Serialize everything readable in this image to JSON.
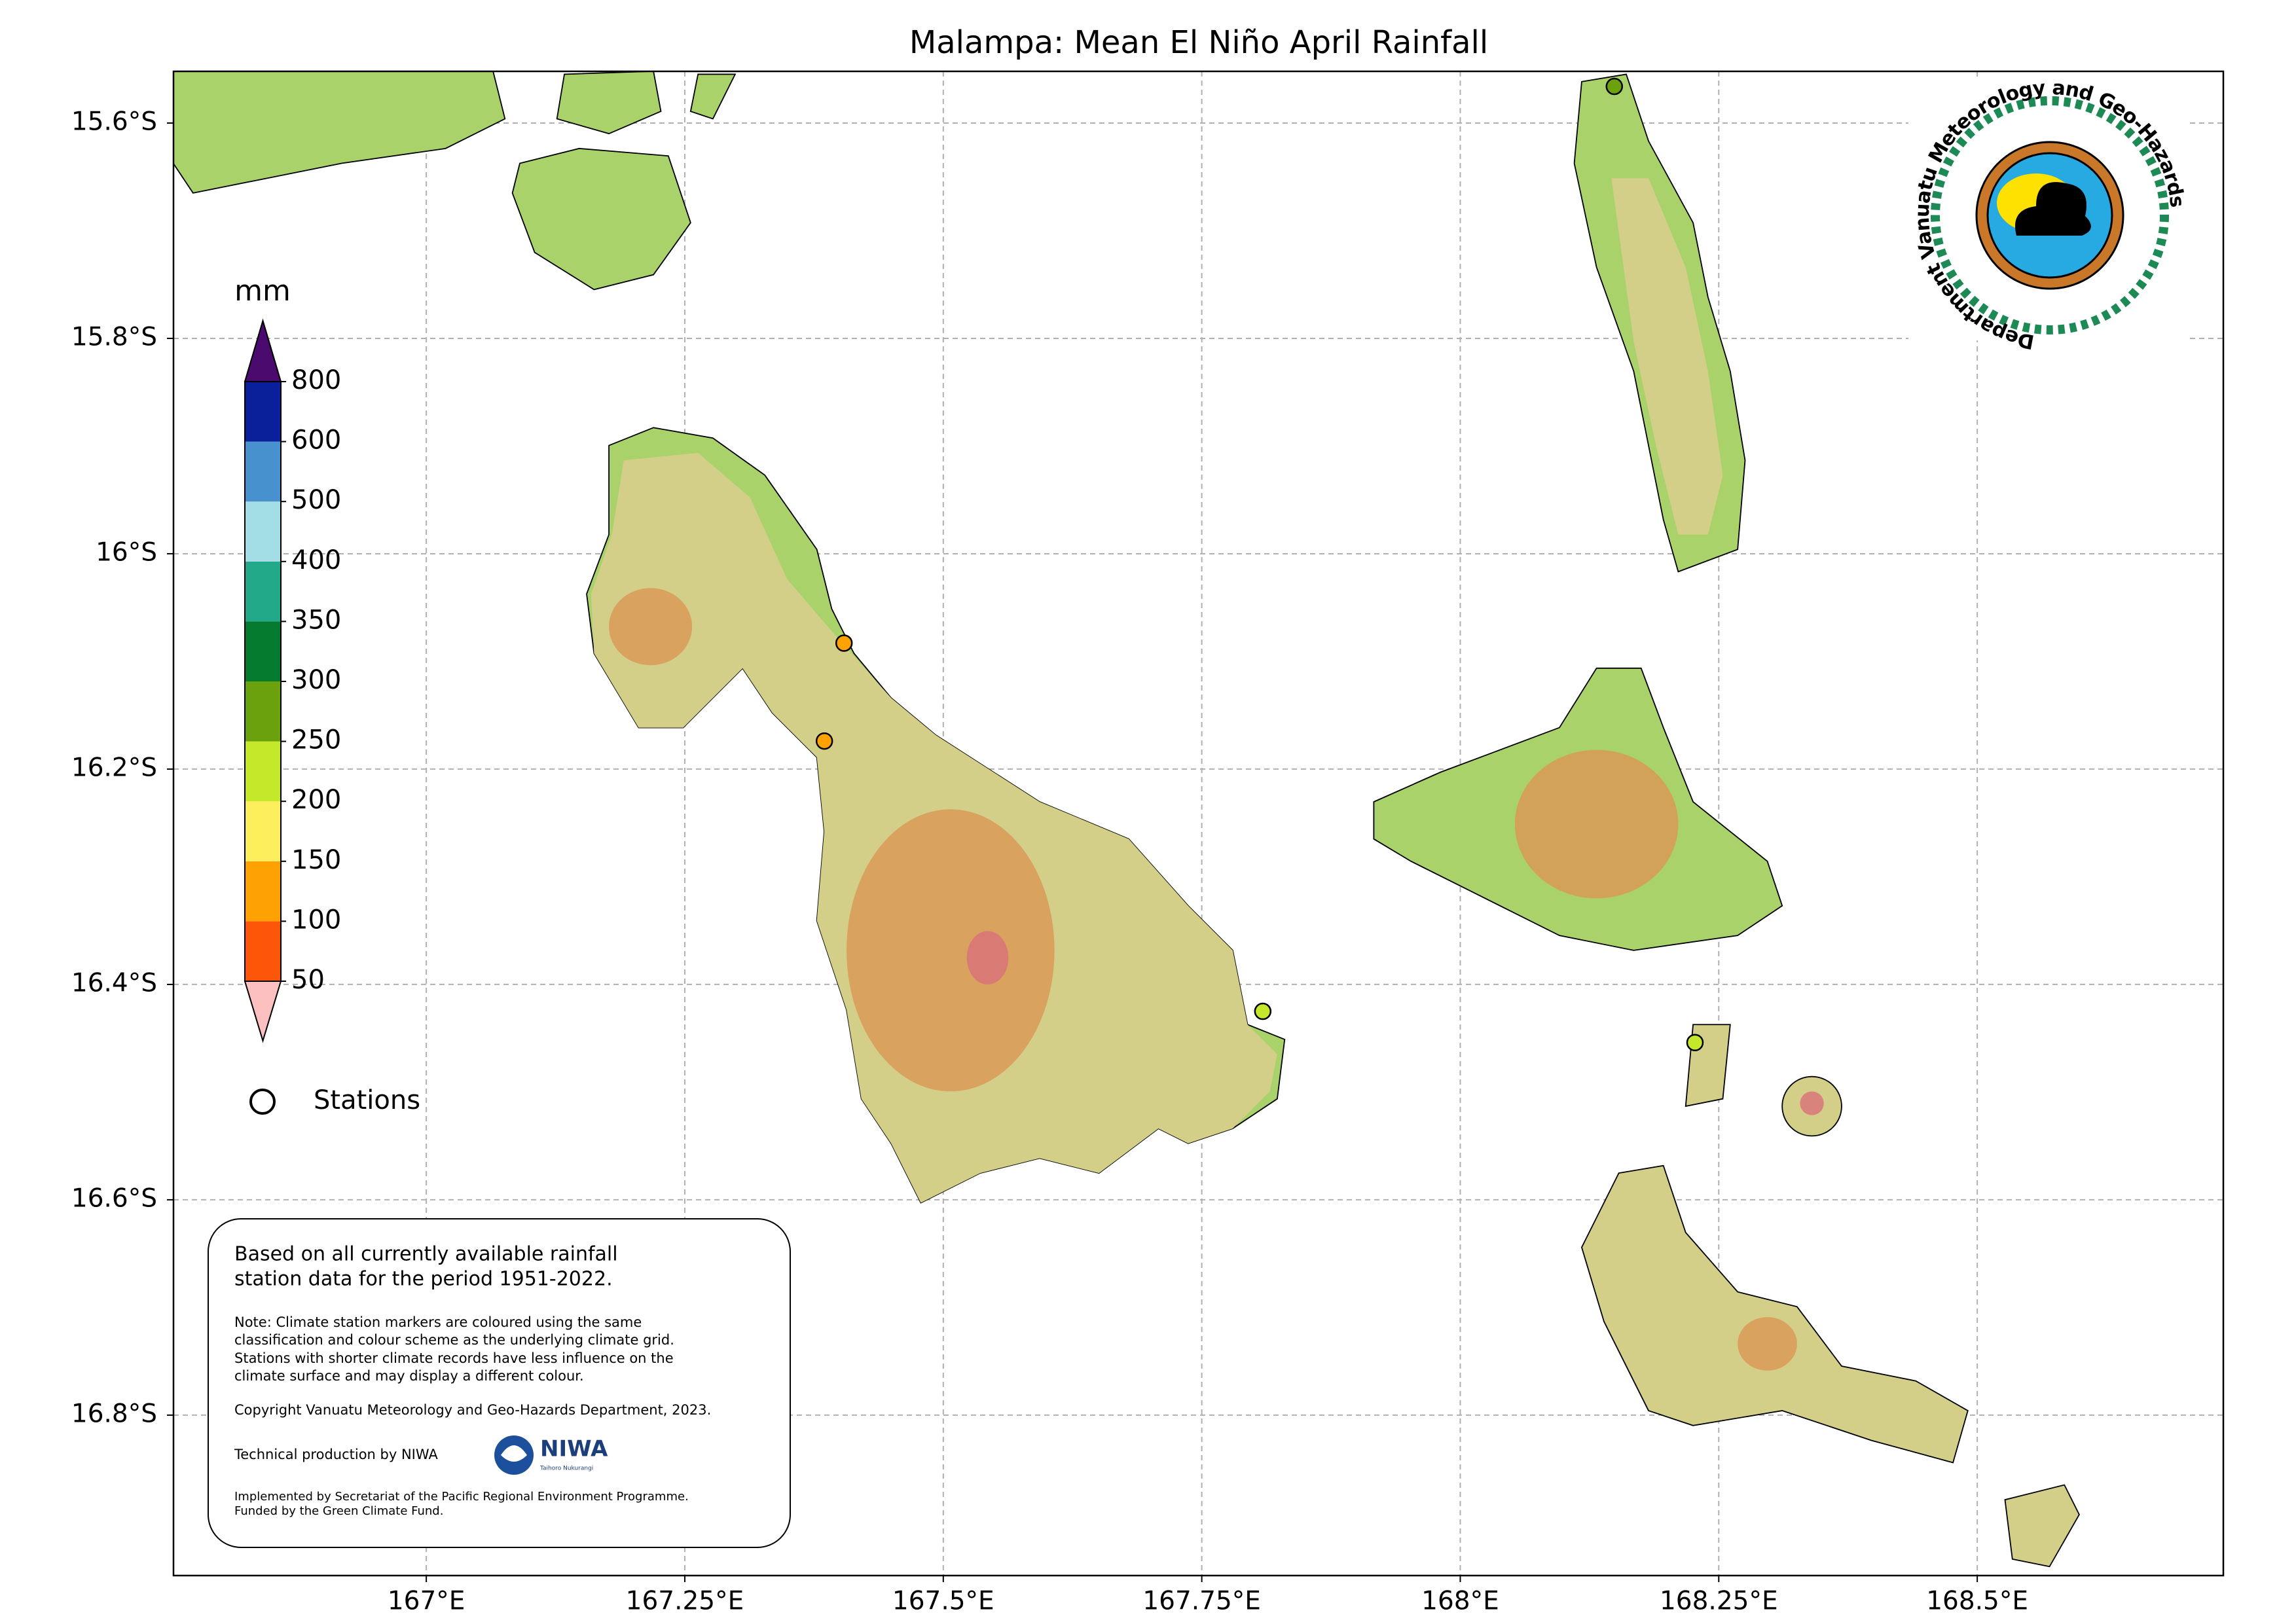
{
  "title": "Malampa: Mean El Niño April Rainfall",
  "map": {
    "xlim": [
      166.7555,
      168.738
    ],
    "ylim": [
      -16.949,
      -15.552
    ],
    "grid": true,
    "xticks": [
      {
        "value": 167,
        "label": "167°E"
      },
      {
        "value": 167.25,
        "label": "167.25°E"
      },
      {
        "value": 167.5,
        "label": "167.5°E"
      },
      {
        "value": 167.75,
        "label": "167.75°E"
      },
      {
        "value": 168,
        "label": "168°E"
      },
      {
        "value": 168.25,
        "label": "168.25°E"
      },
      {
        "value": 168.5,
        "label": "168.5°E"
      }
    ],
    "yticks": [
      {
        "value": -15.6,
        "label": "15.6°S"
      },
      {
        "value": -15.8,
        "label": "15.8°S"
      },
      {
        "value": -16,
        "label": "16°S"
      },
      {
        "value": -16.2,
        "label": "16.2°S"
      },
      {
        "value": -16.4,
        "label": "16.4°S"
      },
      {
        "value": -16.6,
        "label": "16.6°S"
      },
      {
        "value": -16.8,
        "label": "16.8°S"
      }
    ]
  },
  "colorbar": {
    "label": "mm",
    "ticks": [
      50,
      100,
      150,
      200,
      250,
      300,
      350,
      400,
      500,
      600,
      800
    ],
    "colors": [
      "#fcc0c0",
      "#fe5608",
      "#fea102",
      "#fdee5c",
      "#c5e92a",
      "#6aa10c",
      "#037a2e",
      "#22a98a",
      "#a3dde6",
      "#4891cf",
      "#0a1f9a",
      "#4b0a6e"
    ]
  },
  "stations": {
    "legend": "Stations",
    "points": [
      {
        "lon": 168.149,
        "lat": -15.566,
        "color": "#6aa10c"
      },
      {
        "lon": 167.404,
        "lat": -16.083,
        "color": "#fea102"
      },
      {
        "lon": 167.385,
        "lat": -16.174,
        "color": "#fea102"
      },
      {
        "lon": 167.809,
        "lat": -16.425,
        "color": "#c5e92a"
      },
      {
        "lon": 168.227,
        "lat": -16.454,
        "color": "#c5e92a"
      }
    ]
  },
  "notes": {
    "summary": [
      "Based on all currently available rainfall",
      "station data for the period 1951-2022."
    ],
    "note": [
      "Note: Climate station markers are coloured using the same",
      "classification and colour scheme as the underlying climate grid.",
      "Stations with shorter climate records have less influence on the",
      "climate surface and may display a different colour."
    ],
    "copyright": "Copyright Vanuatu Meteorology and Geo-Hazards Department, 2023.",
    "production": "Technical production by NIWA",
    "funding": [
      "Implemented by Secretariat of the Pacific Regional Environment Programme.",
      "Funded by the Green Climate Fund."
    ]
  },
  "logos": {
    "vmgd": "Department Vanuatu Meteorology and Geo-Hazards",
    "niwa": "NIWA",
    "niwa_sub": "Taihoro Nukurangi"
  }
}
